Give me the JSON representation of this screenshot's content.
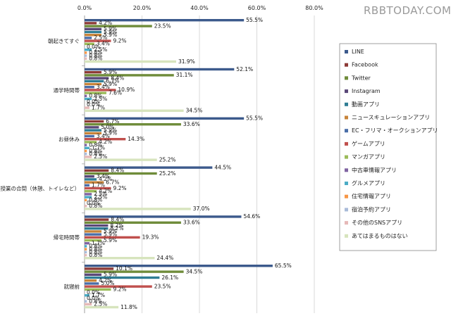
{
  "watermark": "RBBTODAY.COM",
  "chart_data": {
    "type": "bar",
    "orientation": "horizontal",
    "xlim": [
      0,
      80
    ],
    "ticks": [
      "0.0%",
      "20.0%",
      "40.0%",
      "60.0%",
      "80.0%"
    ],
    "tick_values": [
      0,
      20,
      40,
      60,
      80
    ],
    "grid": true,
    "legend_position": "right",
    "categories": [
      "朝起きてすぐ",
      "通学時間帯",
      "お昼休み",
      "授業の合間（休憩、トイレなど）",
      "帰宅時間帯",
      "就寝前"
    ],
    "series": [
      {
        "name": "LINE",
        "color": "#3c5a8c",
        "values": [
          55.5,
          52.1,
          55.5,
          44.5,
          54.6,
          65.5
        ]
      },
      {
        "name": "Facebook",
        "color": "#8c3a36",
        "values": [
          4.2,
          5.9,
          6.7,
          8.4,
          8.4,
          10.1
        ]
      },
      {
        "name": "Twitter",
        "color": "#6f8c3a",
        "values": [
          23.5,
          31.1,
          33.6,
          25.2,
          33.6,
          34.5
        ]
      },
      {
        "name": "Instagram",
        "color": "#5a4878",
        "values": [
          5.9,
          8.4,
          5.0,
          3.4,
          8.2,
          5.9
        ]
      },
      {
        "name": "動画アプリ",
        "color": "#2f7d94",
        "values": [
          5.9,
          6.7,
          5.9,
          4.2,
          8.2,
          26.1
        ]
      },
      {
        "name": "ニュースキュレーションアプリ",
        "color": "#c8843a",
        "values": [
          5.9,
          5.9,
          5.9,
          6.7,
          5.9,
          4.2
        ]
      },
      {
        "name": "EC・フリマ・オークションアプリ",
        "color": "#4a6ea8",
        "values": [
          2.5,
          3.4,
          3.4,
          1.7,
          5.9,
          5.0
        ]
      },
      {
        "name": "ゲームアプリ",
        "color": "#c0504d",
        "values": [
          9.2,
          10.9,
          14.3,
          9.2,
          19.3,
          23.5
        ]
      },
      {
        "name": "マンガアプリ",
        "color": "#9bbb59",
        "values": [
          3.4,
          7.6,
          4.2,
          4.2,
          5.9,
          9.2
        ]
      },
      {
        "name": "中古車情報アプリ",
        "color": "#8064a2",
        "values": [
          0.0,
          0.8,
          0.8,
          2.5,
          1.7,
          0.0
        ]
      },
      {
        "name": "グルメアプリ",
        "color": "#4bacc6",
        "values": [
          2.5,
          2.5,
          1.7,
          2.5,
          0.8,
          1.7
        ]
      },
      {
        "name": "住宅情報アプリ",
        "color": "#f79646",
        "values": [
          0.8,
          0.0,
          0.8,
          0.8,
          0.8,
          0.0
        ]
      },
      {
        "name": "宿泊予約アプリ",
        "color": "#a9bbd9",
        "values": [
          0.8,
          0.0,
          0.8,
          0.0,
          0.8,
          0.8
        ]
      },
      {
        "name": "その他のSNSアプリ",
        "color": "#e6b9b8",
        "values": [
          0.8,
          1.7,
          2.5,
          0.8,
          0.8,
          2.5
        ]
      },
      {
        "name": "あてはまるものはない",
        "color": "#d7e4bd",
        "values": [
          31.9,
          34.5,
          25.2,
          37.0,
          24.4,
          11.8
        ]
      }
    ]
  }
}
